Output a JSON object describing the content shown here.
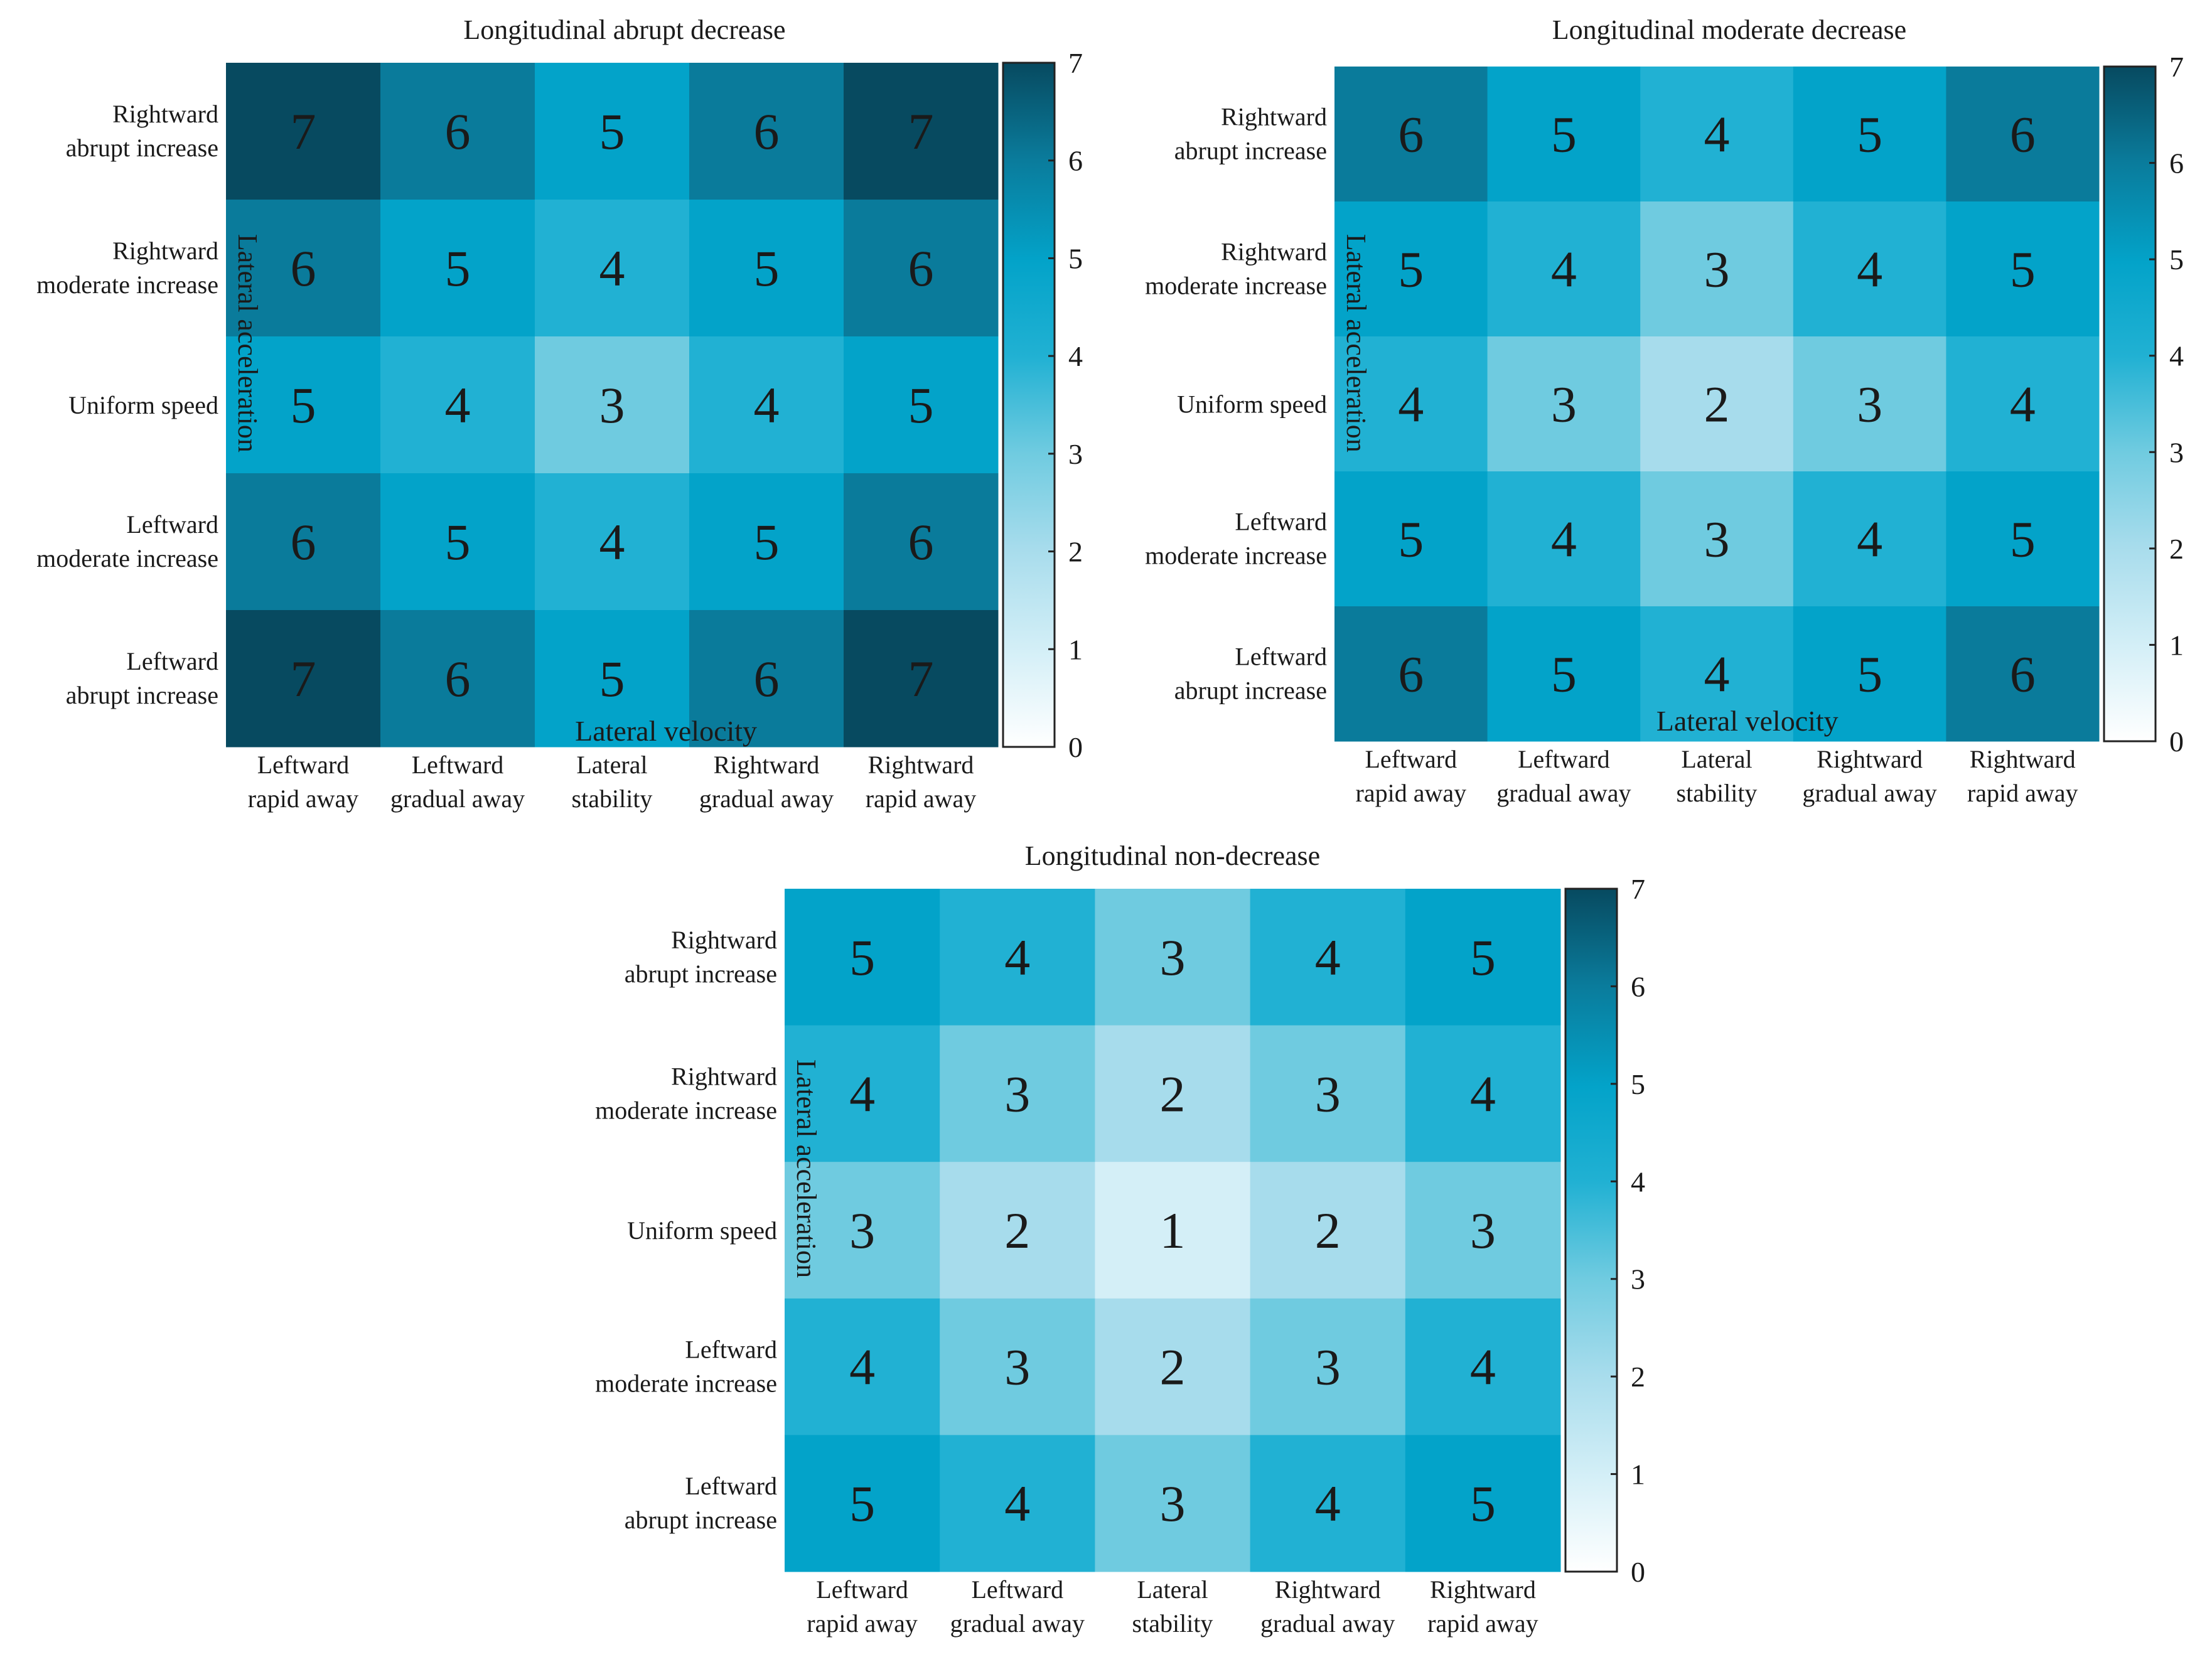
{
  "colors": {
    "scale": [
      "#f7f7f7",
      "#d4eff7",
      "#a7dcec",
      "#6fcbe0",
      "#21b1d3",
      "#03a3c9",
      "#0a7b9b",
      "#074a60"
    ],
    "text": "#1a1a1a",
    "frame": "#222222"
  },
  "chart_data": [
    {
      "type": "heatmap",
      "title": "Longitudinal abrupt decrease",
      "xlabel": "Lateral velocity",
      "ylabel": "Lateral acceleration",
      "x_categories": [
        [
          "Leftward",
          "rapid away"
        ],
        [
          "Leftward",
          "gradual away"
        ],
        [
          "Lateral",
          "stability"
        ],
        [
          "Rightward",
          "gradual  away"
        ],
        [
          "Rightward",
          "rapid  away"
        ]
      ],
      "y_categories": [
        [
          "Rightward",
          "abrupt increase"
        ],
        [
          "Rightward",
          "moderate increase"
        ],
        [
          "Uniform speed"
        ],
        [
          "Leftward",
          "moderate increase"
        ],
        [
          "Leftward",
          "abrupt increase"
        ]
      ],
      "values": [
        [
          7,
          6,
          5,
          6,
          7
        ],
        [
          6,
          5,
          4,
          5,
          6
        ],
        [
          5,
          4,
          3,
          4,
          5
        ],
        [
          6,
          5,
          4,
          5,
          6
        ],
        [
          7,
          6,
          5,
          6,
          7
        ]
      ],
      "colorbar": {
        "min": 0,
        "max": 7,
        "ticks": [
          "0",
          "1",
          "2",
          "3",
          "4",
          "5",
          "6",
          "7"
        ]
      }
    },
    {
      "type": "heatmap",
      "title": "Longitudinal moderate decrease",
      "xlabel": "Lateral velocity",
      "ylabel": "Lateral acceleration",
      "x_categories": [
        [
          "Leftward",
          "rapid away"
        ],
        [
          "Leftward",
          "gradual away"
        ],
        [
          "Lateral",
          "stability"
        ],
        [
          "Rightward",
          "gradual  away"
        ],
        [
          "Rightward",
          "rapid  away"
        ]
      ],
      "y_categories": [
        [
          "Rightward",
          "abrupt increase"
        ],
        [
          "Rightward",
          "moderate increase"
        ],
        [
          "Uniform speed"
        ],
        [
          "Leftward",
          "moderate increase"
        ],
        [
          "Leftward",
          "abrupt increase"
        ]
      ],
      "values": [
        [
          6,
          5,
          4,
          5,
          6
        ],
        [
          5,
          4,
          3,
          4,
          5
        ],
        [
          4,
          3,
          2,
          3,
          4
        ],
        [
          5,
          4,
          3,
          4,
          5
        ],
        [
          6,
          5,
          4,
          5,
          6
        ]
      ],
      "colorbar": {
        "min": 0,
        "max": 7,
        "ticks": [
          "0",
          "1",
          "2",
          "3",
          "4",
          "5",
          "6",
          "7"
        ]
      }
    },
    {
      "type": "heatmap",
      "title": "Longitudinal non-decrease",
      "xlabel": "",
      "ylabel": "Lateral acceleration",
      "x_categories": [
        [
          "Leftward",
          "rapid away"
        ],
        [
          "Leftward",
          "gradual away"
        ],
        [
          "Lateral",
          "stability"
        ],
        [
          "Rightward",
          "gradual  away"
        ],
        [
          "Rightward",
          "rapid  away"
        ]
      ],
      "y_categories": [
        [
          "Rightward",
          "abrupt increase"
        ],
        [
          "Rightward",
          "moderate increase"
        ],
        [
          "Uniform speed"
        ],
        [
          "Leftward",
          "moderate increase"
        ],
        [
          "Leftward",
          "abrupt increase"
        ]
      ],
      "values": [
        [
          5,
          4,
          3,
          4,
          5
        ],
        [
          4,
          3,
          2,
          3,
          4
        ],
        [
          3,
          2,
          1,
          2,
          3
        ],
        [
          4,
          3,
          2,
          3,
          4
        ],
        [
          5,
          4,
          3,
          4,
          5
        ]
      ],
      "colorbar": {
        "min": 0,
        "max": 7,
        "ticks": [
          "0",
          "1",
          "2",
          "3",
          "4",
          "5",
          "6",
          "7"
        ]
      }
    }
  ]
}
